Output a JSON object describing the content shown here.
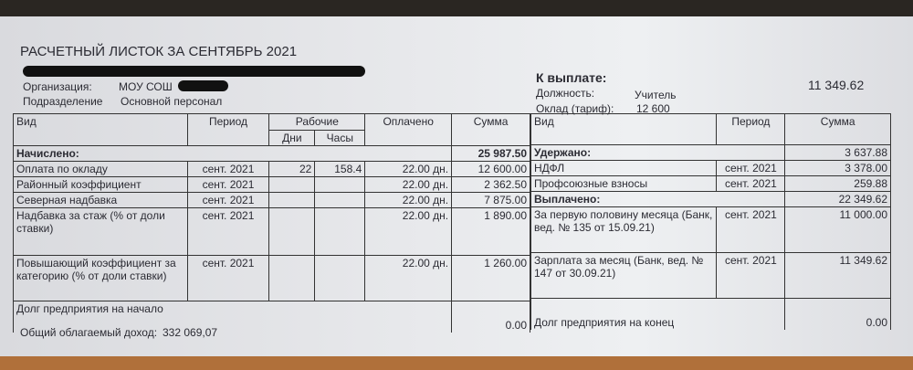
{
  "title": "РАСЧЕТНЫЙ ЛИСТОК ЗА СЕНТЯБРЬ 2021",
  "organization": {
    "label": "Организация:",
    "value": "МОУ СОШ"
  },
  "department": {
    "label": "Подразделение",
    "value": "Основной персонал"
  },
  "to_pay": {
    "label": "К выплате:",
    "value": "11 349.62"
  },
  "position": {
    "label": "Должность:",
    "value": "Учитель"
  },
  "salary": {
    "label": "Оклад (тариф):",
    "value": "12 600"
  },
  "left_table": {
    "headers": {
      "type": "Вид",
      "period": "Период",
      "working": "Рабочие",
      "days": "Дни",
      "hours": "Часы",
      "paid": "Оплачено",
      "sum": "Сумма"
    },
    "accrued": {
      "label": "Начислено:",
      "sum": "25 987.50"
    },
    "rows": [
      {
        "type": "Оплата по окладу",
        "period": "сент. 2021",
        "days": "22",
        "hours": "158.4",
        "paid": "22.00 дн.",
        "sum": "12 600.00"
      },
      {
        "type": "Районный коэффициент",
        "period": "сент. 2021",
        "days": "",
        "hours": "",
        "paid": "22.00 дн.",
        "sum": "2 362.50"
      },
      {
        "type": "Северная надбавка",
        "period": "сент. 2021",
        "days": "",
        "hours": "",
        "paid": "22.00 дн.",
        "sum": "7 875.00"
      },
      {
        "type": "Надбавка за стаж (% от доли ставки)",
        "period": "сент. 2021",
        "days": "",
        "hours": "",
        "paid": "22.00 дн.",
        "sum": "1 890.00"
      },
      {
        "type": "Повышающий коэффициент за категорию (% от доли ставки)",
        "period": "сент. 2021",
        "days": "",
        "hours": "",
        "paid": "22.00 дн.",
        "sum": "1 260.00"
      }
    ],
    "debt_start": {
      "label": "Долг предприятия на начало",
      "value": "0.00"
    },
    "taxable_income": {
      "label": "Общий облагаемый доход:",
      "value": "332 069,07"
    }
  },
  "right_table": {
    "headers": {
      "type": "Вид",
      "period": "Период",
      "sum": "Сумма"
    },
    "withheld": {
      "label": "Удержано:",
      "sum": "3 637.88"
    },
    "withheld_rows": [
      {
        "type": "НДФЛ",
        "period": "сент. 2021",
        "sum": "3 378.00"
      },
      {
        "type": "Профсоюзные взносы",
        "period": "сент. 2021",
        "sum": "259.88"
      }
    ],
    "paid_out": {
      "label": "Выплачено:",
      "sum": "22 349.62"
    },
    "paid_rows": [
      {
        "type": "За первую половину месяца (Банк, вед. № 135 от 15.09.21)",
        "period": "сент. 2021",
        "sum": "11 000.00"
      },
      {
        "type": "Зарплата за месяц (Банк, вед. № 147 от 30.09.21)",
        "period": "сент. 2021",
        "sum": "11 349.62"
      }
    ],
    "debt_end": {
      "label": "Долг предприятия на конец",
      "value": "0.00"
    }
  }
}
